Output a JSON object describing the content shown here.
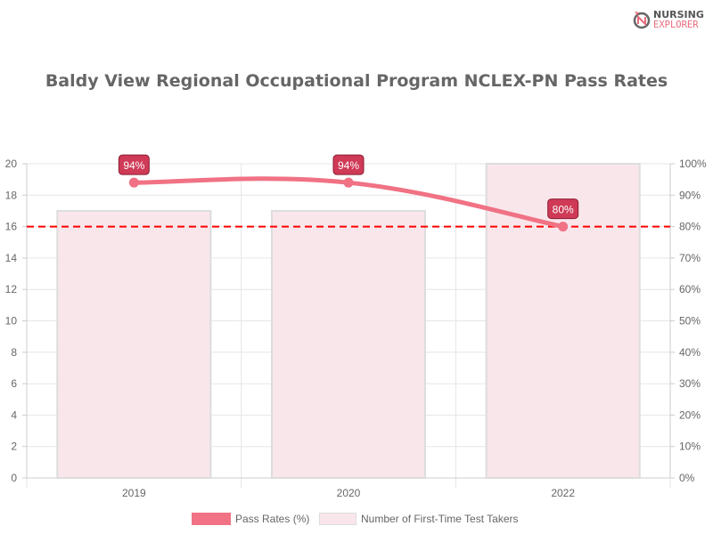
{
  "logo": {
    "line1": "NURSING",
    "line2": "EXPLORER"
  },
  "chart_data": {
    "type": "bar+line",
    "title": "Baldy View Regional Occupational Program NCLEX-PN Pass Rates",
    "categories": [
      "2019",
      "2020",
      "2022"
    ],
    "series": [
      {
        "name": "Pass Rates (%)",
        "type": "line",
        "axis": "right",
        "values": [
          94,
          94,
          80
        ],
        "labels": [
          "94%",
          "94%",
          "80%"
        ],
        "color": "#f07284"
      },
      {
        "name": "Number of First-Time Test Takers",
        "type": "bar",
        "axis": "left",
        "values": [
          17,
          17,
          20
        ],
        "color": "#f9e6eb"
      }
    ],
    "y_left": {
      "range": [
        0,
        20
      ],
      "ticks": [
        "0",
        "2",
        "4",
        "6",
        "8",
        "10",
        "12",
        "14",
        "16",
        "18",
        "20"
      ]
    },
    "y_right": {
      "range": [
        0,
        100
      ],
      "ticks": [
        "0%",
        "10%",
        "20%",
        "30%",
        "40%",
        "50%",
        "60%",
        "70%",
        "80%",
        "90%",
        "100%"
      ]
    },
    "reference_line": {
      "value": 80,
      "axis": "right",
      "style": "dashed",
      "color": "#ff0000"
    },
    "grid": true,
    "legend": "bottom"
  }
}
